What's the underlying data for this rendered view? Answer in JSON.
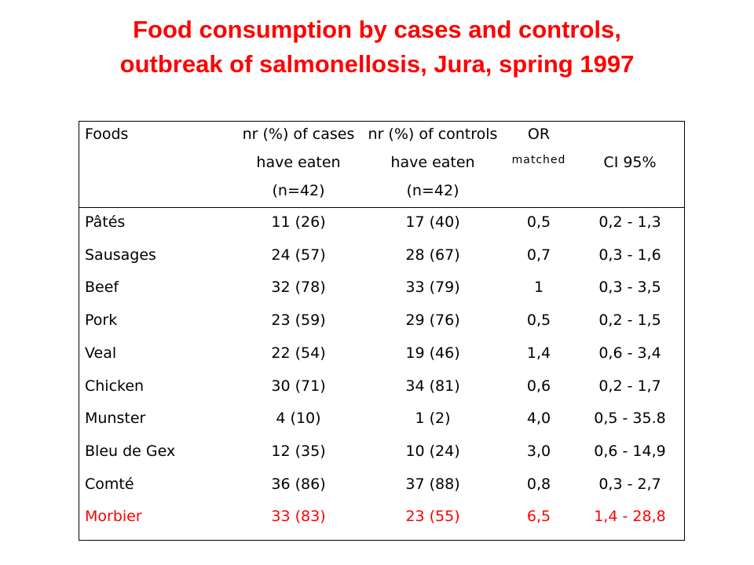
{
  "title": {
    "line1": "Food consumption by cases and controls,",
    "line2": "outbreak of salmonellosis, Jura, spring 1997"
  },
  "table": {
    "header": {
      "foods": "Foods",
      "cases_l1": "nr (%) of cases",
      "cases_l2": "have eaten",
      "cases_l3": "(n=42)",
      "controls_l1": "nr (%) of controls",
      "controls_l2": "have eaten",
      "controls_l3": "(n=42)",
      "or_l1": "OR",
      "or_l2": "matched",
      "ci": "CI 95%"
    },
    "rows": [
      {
        "food": "Pâtés",
        "cases": "11 (26)",
        "controls": "17 (40)",
        "or": "0,5",
        "ci": "0,2 - 1,3"
      },
      {
        "food": "Sausages",
        "cases": "24 (57)",
        "controls": "28 (67)",
        "or": "0,7",
        "ci": "0,3 - 1,6"
      },
      {
        "food": "Beef",
        "cases": "32 (78)",
        "controls": "33 (79)",
        "or": "1",
        "ci": "0,3 - 3,5"
      },
      {
        "food": "Pork",
        "cases": "23 (59)",
        "controls": "29 (76)",
        "or": "0,5",
        "ci": "0,2 - 1,5"
      },
      {
        "food": "Veal",
        "cases": "22 (54)",
        "controls": "19 (46)",
        "or": "1,4",
        "ci": "0,6 - 3,4"
      },
      {
        "food": "Chicken",
        "cases": "30 (71)",
        "controls": "34 (81)",
        "or": "0,6",
        "ci": "0,2 - 1,7"
      },
      {
        "food": "Munster",
        "cases": "4 (10)",
        "controls": "1 (2)",
        "or": "4,0",
        "ci": "0,5 - 35.8"
      },
      {
        "food": "Bleu de Gex",
        "cases": "12 (35)",
        "controls": "10 (24)",
        "or": "3,0",
        "ci": "0,6 - 14,9"
      },
      {
        "food": "Comté",
        "cases": "36 (86)",
        "controls": "37 (88)",
        "or": "0,8",
        "ci": "0,3 - 2,7"
      },
      {
        "food": "Morbier",
        "cases": "33 (83)",
        "controls": "23 (55)",
        "or": "6,5",
        "ci": "1,4 - 28,8",
        "highlight": true
      }
    ]
  },
  "colors": {
    "title": "#ff0000",
    "highlight_row": "#ff0000",
    "text": "#000000"
  }
}
